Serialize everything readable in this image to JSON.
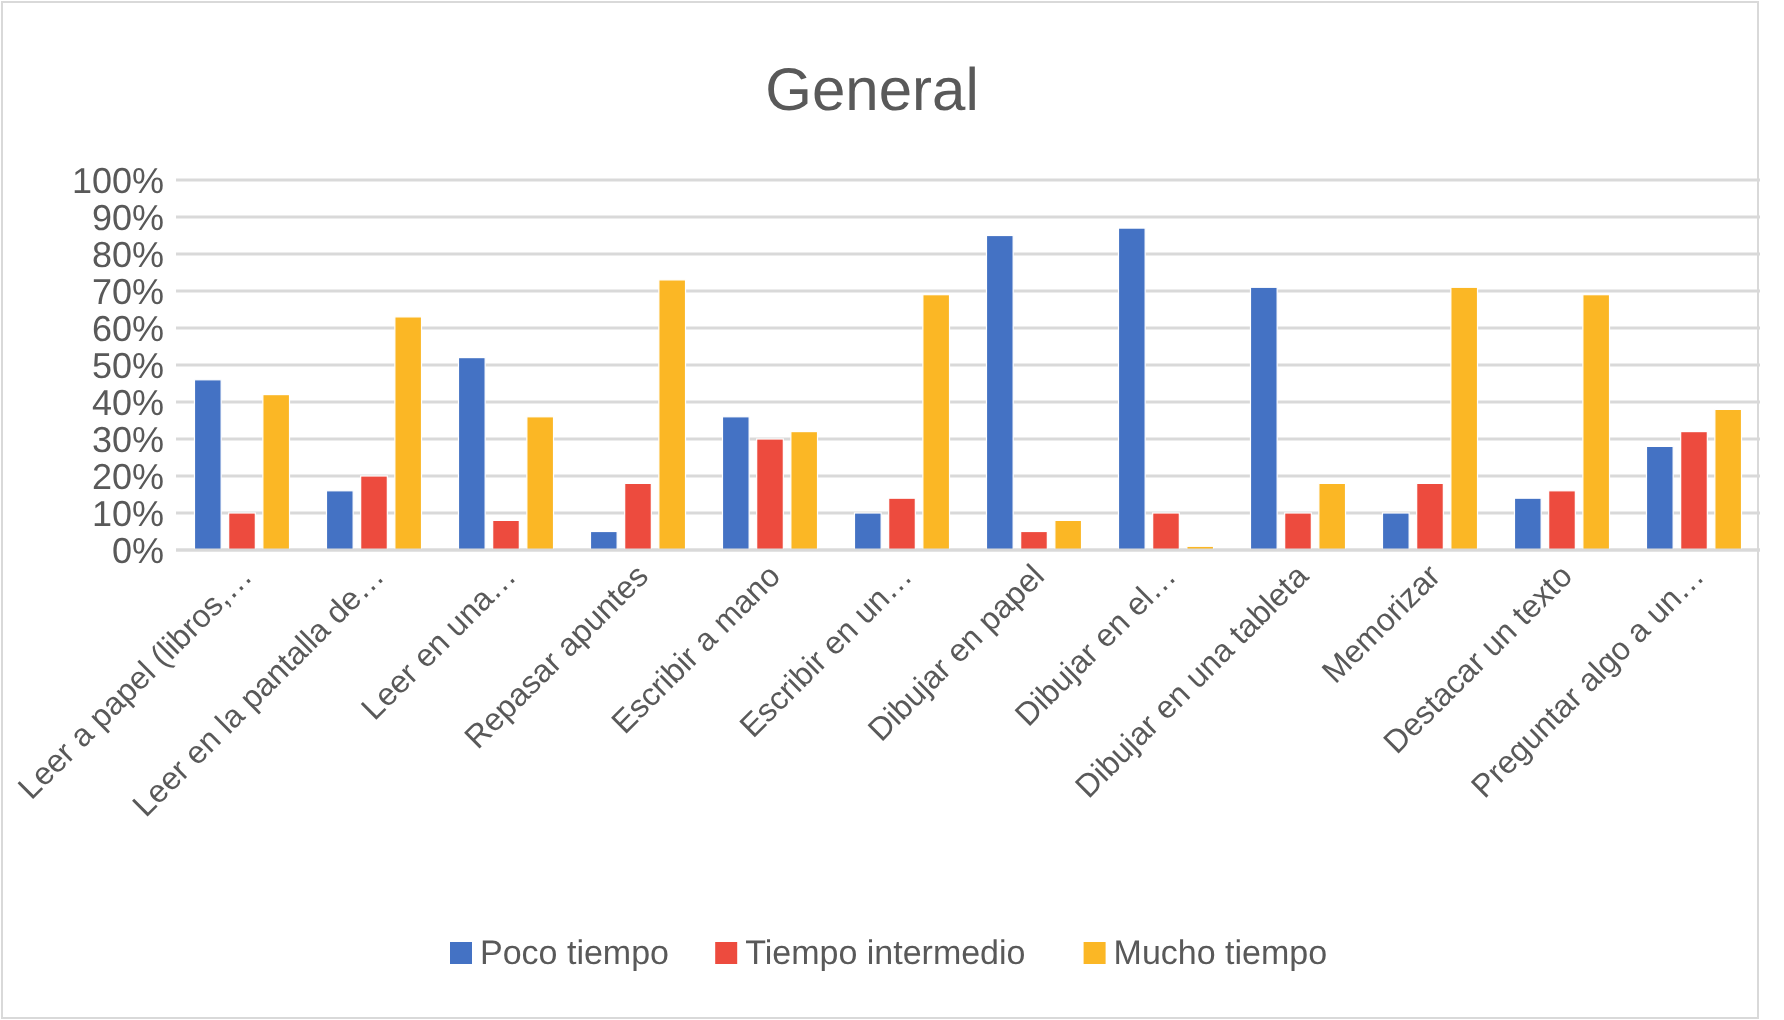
{
  "chart_data": {
    "type": "bar",
    "title": "General",
    "categories": [
      "Leer a papel (libros,…",
      "Leer en la pantalla de…",
      "Leer en una…",
      "Repasar apuntes",
      "Escribir a mano",
      "Escribir en un…",
      "Dibujar en papel",
      "Dibujar en el…",
      "Dibujar en una tableta",
      "Memorizar",
      "Destacar un texto",
      "Preguntar algo a un…"
    ],
    "series": [
      {
        "name": "Poco tiempo",
        "color": "#4472c4",
        "values": [
          46,
          16,
          52,
          5,
          36,
          10,
          85,
          87,
          71,
          10,
          14,
          28
        ]
      },
      {
        "name": "Tiempo intermedio",
        "color": "#ed4b3e",
        "values": [
          10,
          20,
          8,
          18,
          30,
          14,
          5,
          10,
          10,
          18,
          16,
          32
        ]
      },
      {
        "name": "Mucho tiempo",
        "color": "#fbb725",
        "values": [
          42,
          63,
          36,
          73,
          32,
          69,
          8,
          1,
          18,
          71,
          69,
          38
        ]
      }
    ],
    "ylim": [
      0,
      100
    ],
    "yticks": [
      {
        "value": 0,
        "label": "0%"
      },
      {
        "value": 10,
        "label": "10%"
      },
      {
        "value": 20,
        "label": "20%"
      },
      {
        "value": 30,
        "label": "30%"
      },
      {
        "value": 40,
        "label": "40%"
      },
      {
        "value": 50,
        "label": "50%"
      },
      {
        "value": 60,
        "label": "60%"
      },
      {
        "value": 70,
        "label": "70%"
      },
      {
        "value": 80,
        "label": "80%"
      },
      {
        "value": 90,
        "label": "90%"
      },
      {
        "value": 100,
        "label": "100%"
      }
    ],
    "grid": "y",
    "legend": "bottom"
  }
}
